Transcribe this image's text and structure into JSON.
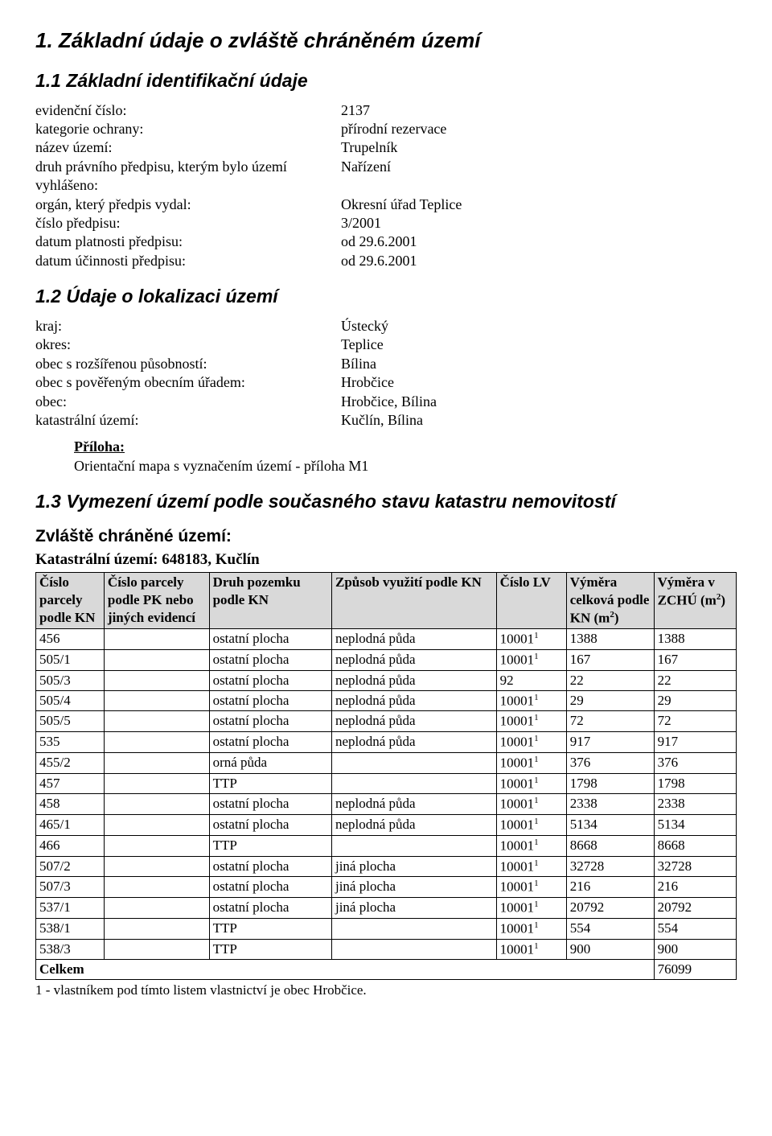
{
  "section1": {
    "heading": "1. Základní údaje o zvláště chráněném území",
    "sub1_1": {
      "heading": "1.1 Základní identifikační údaje",
      "rows": [
        {
          "label": "evidenční číslo:",
          "value": "2137"
        },
        {
          "label": "kategorie ochrany:",
          "value": "přírodní rezervace"
        },
        {
          "label": "název území:",
          "value": "Trupelník"
        },
        {
          "label": "druh právního předpisu, kterým bylo území vyhlášeno:",
          "value": "Nařízení"
        },
        {
          "label": "orgán, který předpis vydal:",
          "value": "Okresní úřad Teplice"
        },
        {
          "label": "číslo předpisu:",
          "value": "3/2001"
        },
        {
          "label": "datum platnosti předpisu:",
          "value": "od 29.6.2001"
        },
        {
          "label": "datum účinnosti předpisu:",
          "value": "od 29.6.2001"
        }
      ]
    },
    "sub1_2": {
      "heading": "1.2 Údaje o lokalizaci území",
      "rows": [
        {
          "label": "kraj:",
          "value": "Ústecký"
        },
        {
          "label": "okres:",
          "value": "Teplice"
        },
        {
          "label": "obec s rozšířenou působností:",
          "value": "Bílina"
        },
        {
          "label": "obec s pověřeným obecním úřadem:",
          "value": "Hrobčice"
        },
        {
          "label": "obec:",
          "value": "Hrobčice, Bílina"
        },
        {
          "label": "katastrální území:",
          "value": "Kučlín, Bílina"
        }
      ]
    },
    "priloha": {
      "head": "Příloha:",
      "text": "Orientační mapa s vyznačením území - příloha M1"
    },
    "sub1_3": {
      "heading": "1.3 Vymezení území podle současného stavu katastru nemovitostí",
      "zchu_heading": "Zvláště chráněné území:",
      "kat_line": "Katastrální území: 648183, Kučlín",
      "columns": [
        "Číslo parcely podle KN",
        "Číslo parcely podle PK nebo jiných evidencí",
        "Druh pozemku podle KN",
        "Způsob využití podle KN",
        "Číslo LV",
        "Výměra celková podle KN (m²)",
        "Výměra v ZCHÚ (m²)"
      ],
      "col_widths": [
        "78px",
        "120px",
        "140px",
        "188px",
        "80px",
        "100px",
        "94px"
      ],
      "rows": [
        {
          "c1": "456",
          "c2": "",
          "c3": "ostatní plocha",
          "c4": "neplodná půda",
          "c5": "10001",
          "sup": "1",
          "c6": "1388",
          "c7": "1388"
        },
        {
          "c1": "505/1",
          "c2": "",
          "c3": "ostatní plocha",
          "c4": "neplodná půda",
          "c5": "10001",
          "sup": "1",
          "c6": "167",
          "c7": "167"
        },
        {
          "c1": "505/3",
          "c2": "",
          "c3": "ostatní plocha",
          "c4": "neplodná půda",
          "c5": "92",
          "sup": "",
          "c6": "22",
          "c7": "22"
        },
        {
          "c1": "505/4",
          "c2": "",
          "c3": "ostatní plocha",
          "c4": "neplodná půda",
          "c5": "10001",
          "sup": "1",
          "c6": "29",
          "c7": "29"
        },
        {
          "c1": "505/5",
          "c2": "",
          "c3": "ostatní plocha",
          "c4": "neplodná půda",
          "c5": "10001",
          "sup": "1",
          "c6": "72",
          "c7": "72"
        },
        {
          "c1": "535",
          "c2": "",
          "c3": "ostatní plocha",
          "c4": "neplodná půda",
          "c5": "10001",
          "sup": "1",
          "c6": "917",
          "c7": "917"
        },
        {
          "c1": "455/2",
          "c2": "",
          "c3": "orná půda",
          "c4": "",
          "c5": "10001",
          "sup": "1",
          "c6": "376",
          "c7": "376"
        },
        {
          "c1": "457",
          "c2": "",
          "c3": "TTP",
          "c4": "",
          "c5": "10001",
          "sup": "1",
          "c6": "1798",
          "c7": "1798"
        },
        {
          "c1": "458",
          "c2": "",
          "c3": "ostatní plocha",
          "c4": "neplodná půda",
          "c5": "10001",
          "sup": "1",
          "c6": "2338",
          "c7": "2338"
        },
        {
          "c1": "465/1",
          "c2": "",
          "c3": "ostatní plocha",
          "c4": "neplodná půda",
          "c5": "10001",
          "sup": "1",
          "c6": "5134",
          "c7": "5134"
        },
        {
          "c1": "466",
          "c2": "",
          "c3": "TTP",
          "c4": "",
          "c5": "10001",
          "sup": "1",
          "c6": "8668",
          "c7": "8668"
        },
        {
          "c1": "507/2",
          "c2": "",
          "c3": "ostatní plocha",
          "c4": "jiná plocha",
          "c5": "10001",
          "sup": "1",
          "c6": "32728",
          "c7": "32728"
        },
        {
          "c1": "507/3",
          "c2": "",
          "c3": "ostatní plocha",
          "c4": "jiná plocha",
          "c5": "10001",
          "sup": "1",
          "c6": "216",
          "c7": "216"
        },
        {
          "c1": "537/1",
          "c2": "",
          "c3": "ostatní plocha",
          "c4": "jiná plocha",
          "c5": "10001",
          "sup": "1",
          "c6": "20792",
          "c7": "20792"
        },
        {
          "c1": "538/1",
          "c2": "",
          "c3": "TTP",
          "c4": "",
          "c5": "10001",
          "sup": "1",
          "c6": "554",
          "c7": "554"
        },
        {
          "c1": "538/3",
          "c2": "",
          "c3": "TTP",
          "c4": "",
          "c5": "10001",
          "sup": "1",
          "c6": "900",
          "c7": "900"
        }
      ],
      "total_label": "Celkem",
      "total_value": "76099",
      "footnote": "1 - vlastníkem pod tímto listem vlastnictví je obec Hrobčice."
    }
  }
}
